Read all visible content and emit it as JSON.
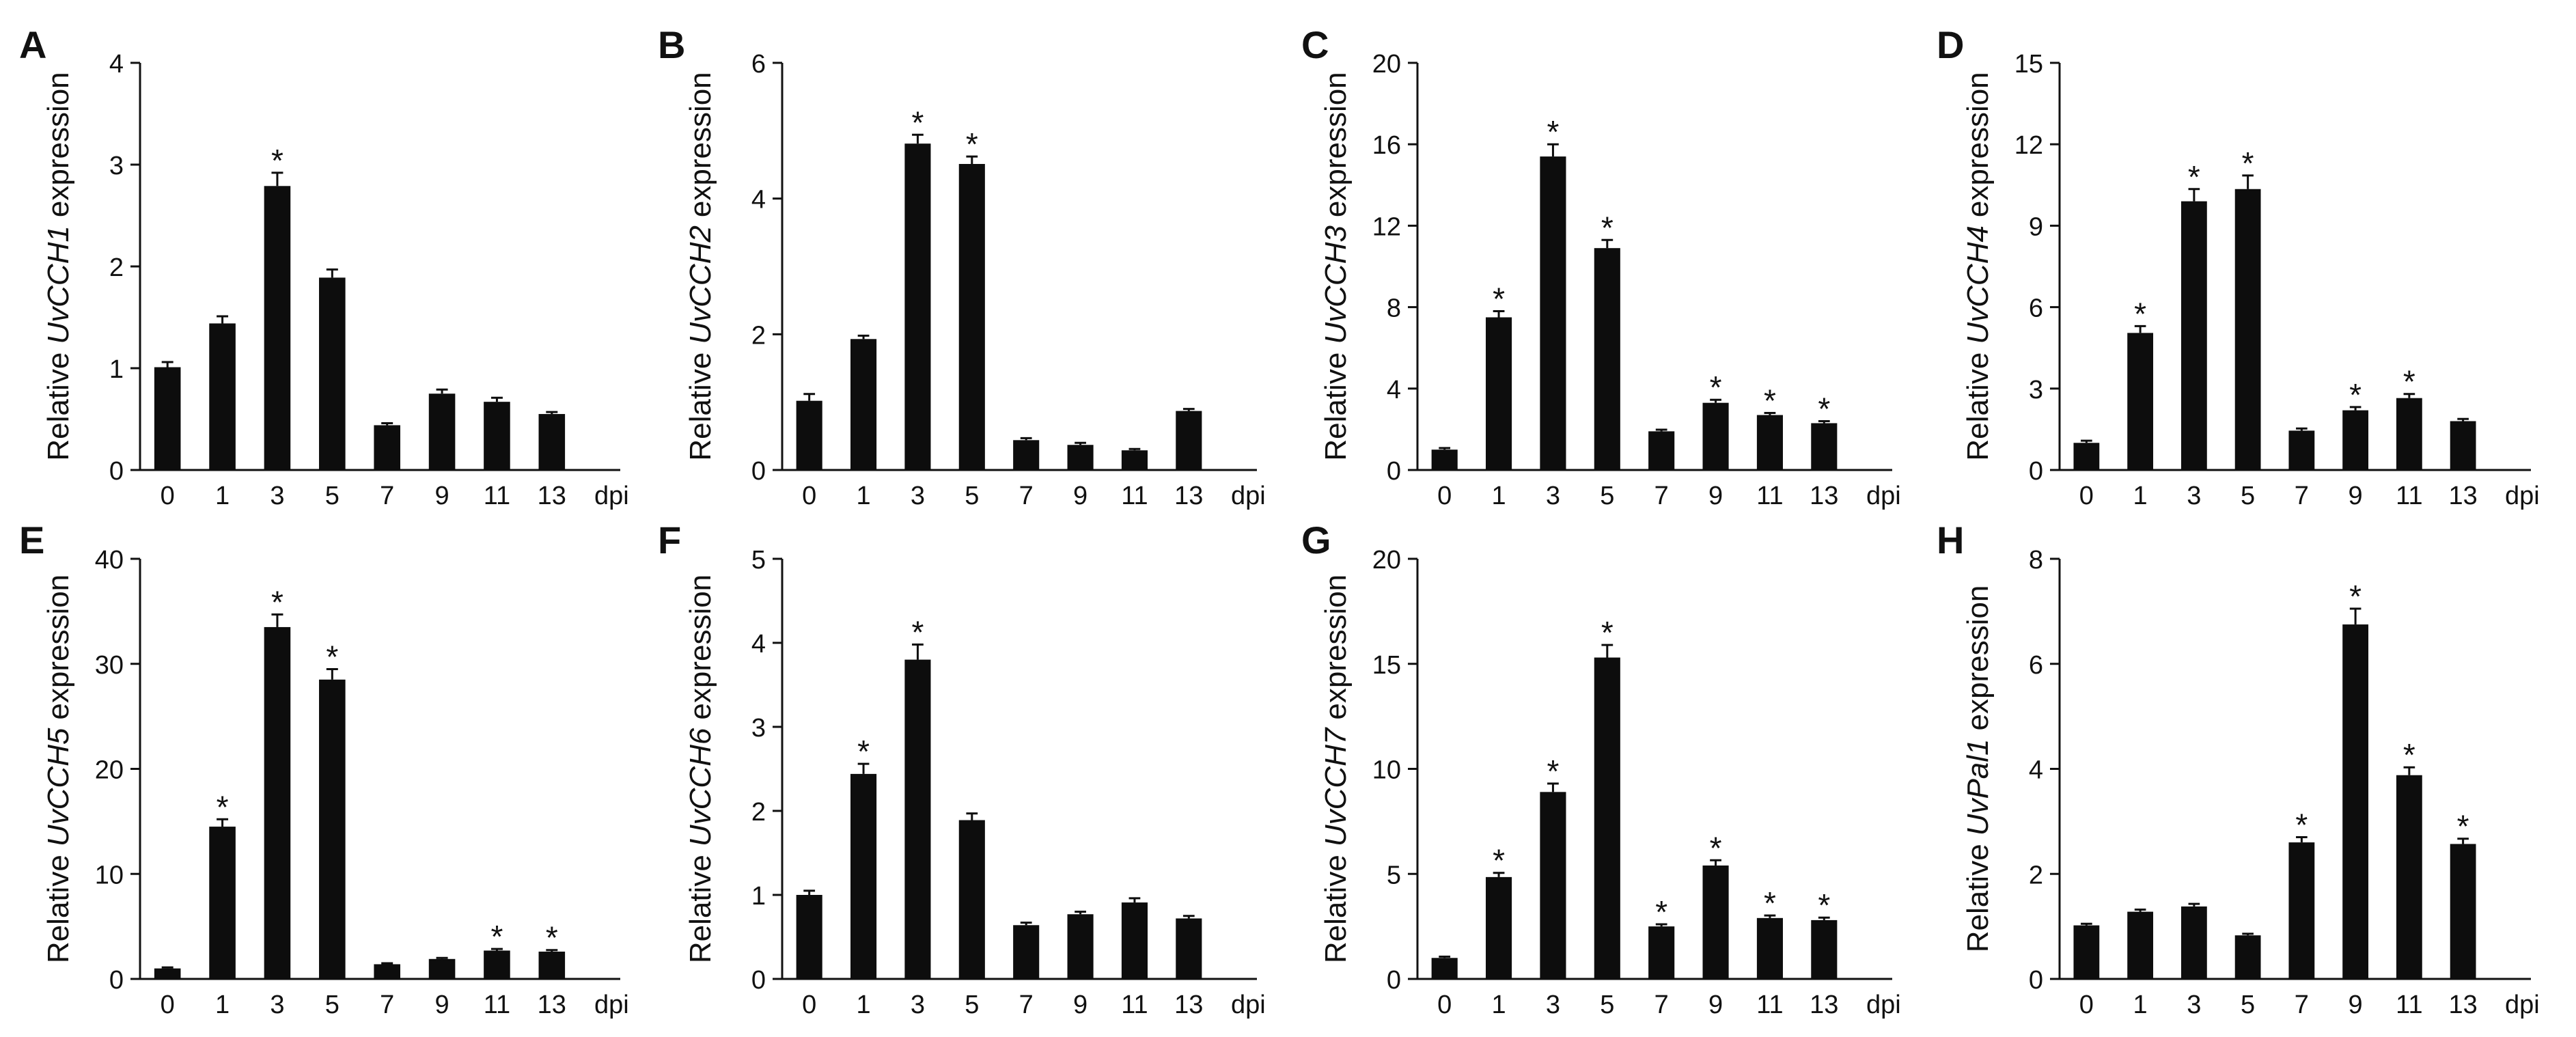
{
  "figure": {
    "x_unit_label": "dpi",
    "ylabel_prefix": "Relative",
    "ylabel_suffix": "expression",
    "significance_marker": "*"
  },
  "chart_data": [
    {
      "type": "bar",
      "panel": "A",
      "gene": "UvCCH1",
      "categories": [
        "0",
        "1",
        "3",
        "5",
        "7",
        "9",
        "11",
        "13"
      ],
      "values": [
        1.01,
        1.44,
        2.79,
        1.89,
        0.44,
        0.75,
        0.67,
        0.55
      ],
      "errors": [
        0.05,
        0.07,
        0.13,
        0.08,
        0.02,
        0.04,
        0.04,
        0.02
      ],
      "significant": [
        false,
        false,
        true,
        false,
        false,
        false,
        false,
        false
      ],
      "ylim": [
        0,
        4
      ],
      "yticks": [
        0,
        1,
        2,
        3,
        4
      ]
    },
    {
      "type": "bar",
      "panel": "B",
      "gene": "UvCCH2",
      "categories": [
        "0",
        "1",
        "3",
        "5",
        "7",
        "9",
        "11",
        "13"
      ],
      "values": [
        1.02,
        1.93,
        4.81,
        4.51,
        0.44,
        0.37,
        0.29,
        0.87
      ],
      "errors": [
        0.1,
        0.05,
        0.13,
        0.11,
        0.03,
        0.03,
        0.02,
        0.03
      ],
      "significant": [
        false,
        false,
        true,
        true,
        false,
        false,
        false,
        false
      ],
      "ylim": [
        0,
        6
      ],
      "yticks": [
        0,
        2,
        4,
        6
      ]
    },
    {
      "type": "bar",
      "panel": "C",
      "gene": "UvCCH3",
      "categories": [
        "0",
        "1",
        "3",
        "5",
        "7",
        "9",
        "11",
        "13"
      ],
      "values": [
        1.0,
        7.5,
        15.4,
        10.9,
        1.9,
        3.3,
        2.7,
        2.3
      ],
      "errors": [
        0.08,
        0.3,
        0.6,
        0.4,
        0.08,
        0.15,
        0.1,
        0.1
      ],
      "significant": [
        false,
        true,
        true,
        true,
        false,
        true,
        true,
        true
      ],
      "ylim": [
        0,
        20
      ],
      "yticks": [
        0,
        4,
        8,
        12,
        16,
        20
      ]
    },
    {
      "type": "bar",
      "panel": "D",
      "gene": "UvCCH4",
      "categories": [
        "0",
        "1",
        "3",
        "5",
        "7",
        "9",
        "11",
        "13"
      ],
      "values": [
        1.0,
        5.05,
        9.9,
        10.35,
        1.45,
        2.2,
        2.65,
        1.8
      ],
      "errors": [
        0.08,
        0.25,
        0.45,
        0.5,
        0.08,
        0.12,
        0.15,
        0.08
      ],
      "significant": [
        false,
        true,
        true,
        true,
        false,
        true,
        true,
        false
      ],
      "ylim": [
        0,
        15
      ],
      "yticks": [
        0,
        3,
        6,
        9,
        12,
        15
      ]
    },
    {
      "type": "bar",
      "panel": "E",
      "gene": "UvCCH5",
      "categories": [
        "0",
        "1",
        "3",
        "5",
        "7",
        "9",
        "11",
        "13"
      ],
      "values": [
        1.0,
        14.5,
        33.5,
        28.5,
        1.4,
        1.9,
        2.7,
        2.6
      ],
      "errors": [
        0.1,
        0.7,
        1.2,
        1.0,
        0.1,
        0.1,
        0.15,
        0.15
      ],
      "significant": [
        false,
        true,
        true,
        true,
        false,
        false,
        true,
        true
      ],
      "ylim": [
        0,
        40
      ],
      "yticks": [
        0,
        10,
        20,
        30,
        40
      ]
    },
    {
      "type": "bar",
      "panel": "F",
      "gene": "UvCCH6",
      "categories": [
        "0",
        "1",
        "3",
        "5",
        "7",
        "9",
        "11",
        "13"
      ],
      "values": [
        1.0,
        2.44,
        3.8,
        1.89,
        0.64,
        0.77,
        0.91,
        0.72
      ],
      "errors": [
        0.05,
        0.12,
        0.18,
        0.08,
        0.03,
        0.03,
        0.05,
        0.03
      ],
      "significant": [
        false,
        true,
        true,
        false,
        false,
        false,
        false,
        false
      ],
      "ylim": [
        0,
        5
      ],
      "yticks": [
        0,
        1,
        2,
        3,
        4,
        5
      ]
    },
    {
      "type": "bar",
      "panel": "G",
      "gene": "UvCCH7",
      "categories": [
        "0",
        "1",
        "3",
        "5",
        "7",
        "9",
        "11",
        "13"
      ],
      "values": [
        1.0,
        4.85,
        8.9,
        15.3,
        2.5,
        5.4,
        2.9,
        2.8
      ],
      "errors": [
        0.06,
        0.2,
        0.4,
        0.6,
        0.1,
        0.25,
        0.12,
        0.12
      ],
      "significant": [
        false,
        true,
        true,
        true,
        true,
        true,
        true,
        true
      ],
      "ylim": [
        0,
        20
      ],
      "yticks": [
        0,
        5,
        10,
        15,
        20
      ]
    },
    {
      "type": "bar",
      "panel": "H",
      "gene": "UvPal1",
      "categories": [
        "0",
        "1",
        "3",
        "5",
        "7",
        "9",
        "11",
        "13"
      ],
      "values": [
        1.02,
        1.28,
        1.38,
        0.83,
        2.6,
        6.75,
        3.88,
        2.57
      ],
      "errors": [
        0.03,
        0.04,
        0.05,
        0.03,
        0.1,
        0.3,
        0.15,
        0.1
      ],
      "significant": [
        false,
        false,
        false,
        false,
        true,
        true,
        true,
        true
      ],
      "ylim": [
        0,
        8
      ],
      "yticks": [
        0,
        2,
        4,
        6,
        8
      ]
    }
  ]
}
